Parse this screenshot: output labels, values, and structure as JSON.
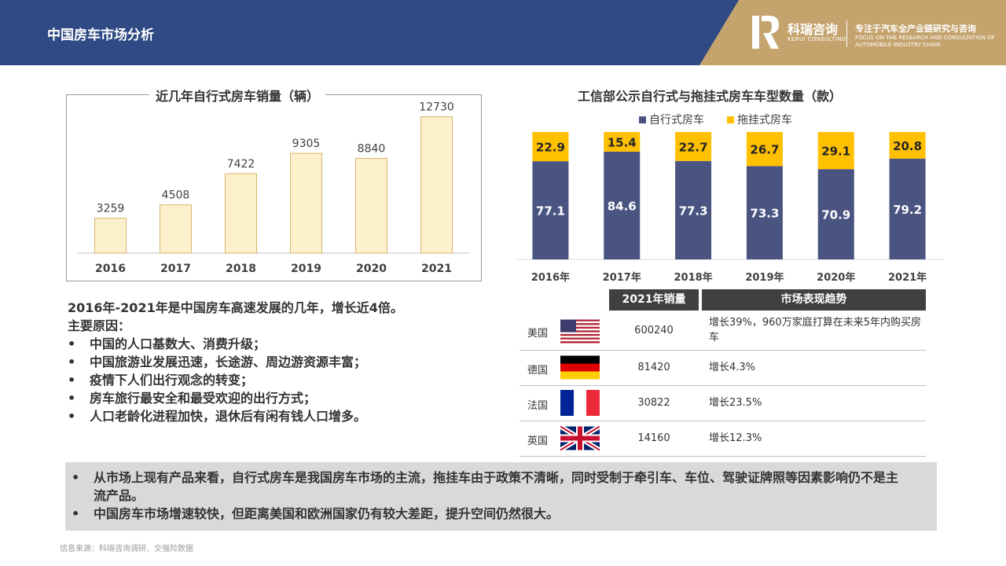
{
  "header": {
    "title": "中国房车市场分析",
    "brand_cn": "科瑞咨询",
    "brand_en": "KERUI CONSULTING",
    "slogan": "专注于汽车全产业链研究与咨询",
    "slogan_en": "FOCUS ON THE RESEARCH AND CONSULTATION OF AUTOMOBILE INDUSTRY CHAIN",
    "bar_color": "#2f4a84",
    "brand_color": "#c4a36c"
  },
  "chart_data": [
    {
      "type": "bar",
      "title": "近几年自行式房车销量（辆）",
      "categories": [
        "2016",
        "2017",
        "2018",
        "2019",
        "2020",
        "2021"
      ],
      "values": [
        3259,
        4508,
        7422,
        9305,
        8840,
        12730
      ],
      "ylim": [
        0,
        13500
      ],
      "grid": false,
      "bar_color": "#fdf0cc",
      "bar_border": "#d7b66c"
    },
    {
      "type": "bar",
      "stacked": true,
      "title": "工信部公示自行式与拖挂式房车车型数量（款）",
      "categories": [
        "2016年",
        "2017年",
        "2018年",
        "2019年",
        "2020年",
        "2021年"
      ],
      "series": [
        {
          "name": "自行式房车",
          "values": [
            77.1,
            84.6,
            77.3,
            73.3,
            70.9,
            79.2
          ],
          "color": "#4a5481"
        },
        {
          "name": "拖挂式房车",
          "values": [
            22.9,
            15.4,
            22.7,
            26.7,
            29.1,
            20.8
          ],
          "color": "#ffc000"
        }
      ],
      "ylim": [
        0,
        100
      ],
      "legend": "top-center",
      "grid": false
    }
  ],
  "table": {
    "headers": [
      "",
      "2021年销量",
      "市场表现趋势"
    ],
    "rows": [
      {
        "country": "美国",
        "flag": "us-flag-icon",
        "sales": "600240",
        "trend": "增长39%，960万家庭打算在未来5年内购买房车"
      },
      {
        "country": "德国",
        "flag": "de-flag-icon",
        "sales": "81420",
        "trend": "增长4.3%"
      },
      {
        "country": "法国",
        "flag": "fr-flag-icon",
        "sales": "30822",
        "trend": "增长23.5%"
      },
      {
        "country": "英国",
        "flag": "uk-flag-icon",
        "sales": "14160",
        "trend": "增长12.3%"
      }
    ]
  },
  "analysis": {
    "heading": "2016年-2021年是中国房车高速发展的几年，增长近4倍。",
    "reasons_title": "主要原因：",
    "reasons": [
      "中国的人口基数大、消费升级；",
      "中国旅游业发展迅速，长途游、周边游资源丰富；",
      "疫情下人们出行观念的转变；",
      "房车旅行最安全和最受欢迎的出行方式；",
      "人口老龄化进程加快，退休后有闲有钱人口增多。"
    ]
  },
  "summary": [
    "从市场上现有产品来看，自行式房车是我国房车市场的主流，拖挂车由于政策不清晰，同时受制于牵引车、车位、驾驶证牌照等因素影响仍不是主流产品。",
    "中国房车市场增速较快，但距离美国和欧洲国家仍有较大差距，提升空间仍然很大。"
  ],
  "source": "信息来源：科瑞咨询调研、交强险数据"
}
